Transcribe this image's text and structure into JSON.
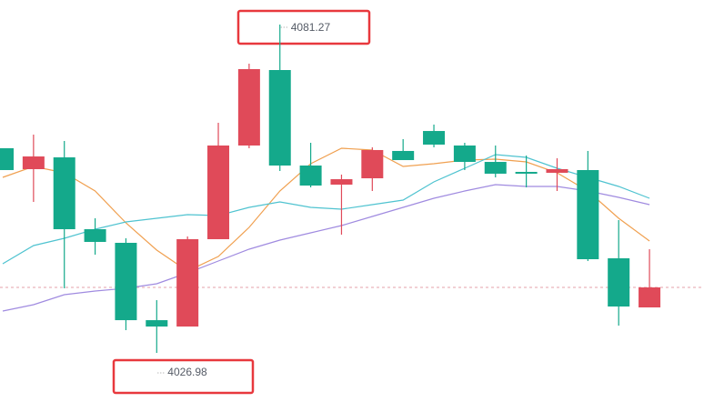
{
  "chart_data": {
    "type": "candlestick",
    "high_label": "4081.27",
    "low_label": "4026.98",
    "ylim": [
      4018.86,
      4085.33
    ],
    "up_color": "#e04a59",
    "down_color": "#14a98b",
    "last_price_line": true,
    "candles": {
      "open": [
        4060.82,
        4057.36,
        4059.31,
        4047.43,
        4045.18,
        4032.39,
        4031.34,
        4045.78,
        4061.27,
        4073.75,
        4057.96,
        4054.8,
        4055.85,
        4060.37,
        4063.67,
        4061.27,
        4058.56,
        4056.91,
        4056.76,
        4057.21,
        4042.62,
        4034.5
      ],
      "high": [
        4060.82,
        4063.07,
        4062.02,
        4049.24,
        4045.93,
        4035.7,
        4046.23,
        4065.03,
        4074.8,
        4081.27,
        4061.72,
        4056.46,
        4060.97,
        4062.32,
        4064.73,
        4061.72,
        4061.27,
        4059.61,
        4059.16,
        4060.37,
        4048.94,
        4044.12
      ],
      "low": [
        4057.21,
        4051.94,
        4037.66,
        4043.22,
        4030.74,
        4026.98,
        4031.34,
        4045.78,
        4060.82,
        4057.06,
        4054.35,
        4046.53,
        4053.75,
        4058.86,
        4060.97,
        4057.21,
        4056.0,
        4054.35,
        4053.75,
        4042.17,
        4031.49,
        4034.5
      ],
      "close": [
        4057.21,
        4059.46,
        4047.43,
        4045.33,
        4032.39,
        4031.34,
        4045.78,
        4061.27,
        4073.9,
        4057.96,
        4054.65,
        4055.7,
        4060.52,
        4058.86,
        4061.42,
        4058.56,
        4056.61,
        4056.61,
        4057.36,
        4042.47,
        4034.65,
        4037.81
      ]
    },
    "lines": [
      {
        "color": "#f0a050",
        "values": [
          4056.0,
          4057.81,
          4056.76,
          4053.75,
          4048.48,
          4043.97,
          4040.51,
          4042.92,
          4047.73,
          4053.75,
          4058.26,
          4060.82,
          4060.52,
          4057.81,
          4058.26,
          4058.86,
          4059.01,
          4058.56,
          4056.76,
          4053.75,
          4049.24,
          4045.48
        ]
      },
      {
        "color": "#4fc3d0",
        "values": [
          4041.72,
          4044.73,
          4045.93,
          4047.43,
          4048.64,
          4049.24,
          4049.84,
          4049.69,
          4051.04,
          4051.94,
          4051.04,
          4050.74,
          4051.49,
          4052.24,
          4055.25,
          4057.51,
          4059.76,
          4059.31,
          4057.51,
          4056.0,
          4054.5,
          4052.55
        ]
      },
      {
        "color": "#a08be0",
        "values": [
          4033.9,
          4034.95,
          4036.6,
          4037.21,
          4037.66,
          4038.41,
          4040.21,
          4042.17,
          4044.12,
          4045.63,
          4046.83,
          4048.03,
          4049.54,
          4051.04,
          4052.55,
          4053.75,
          4054.8,
          4054.5,
          4054.5,
          4053.75,
          4052.7,
          4051.49
        ]
      }
    ]
  }
}
